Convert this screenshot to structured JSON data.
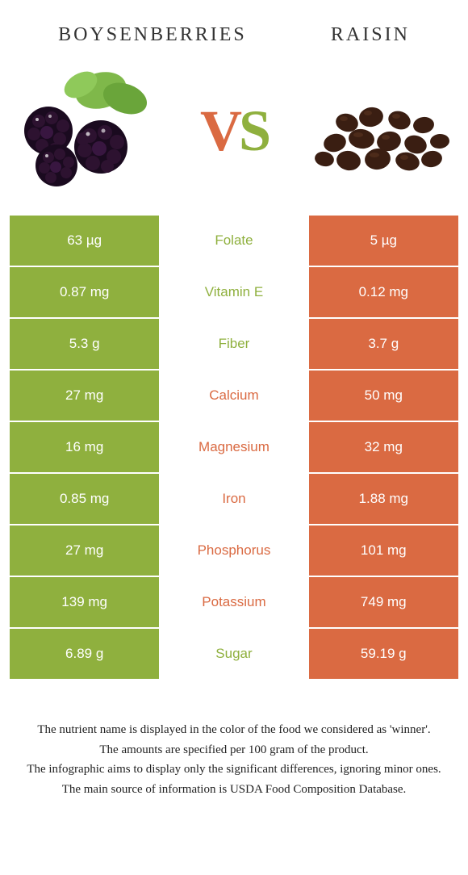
{
  "header": {
    "left_title": "Boysenberries",
    "right_title": "Raisin",
    "vs_v": "V",
    "vs_s": "S"
  },
  "colors": {
    "left_bg": "#8fb03e",
    "right_bg": "#da6a42",
    "left_text": "#8fb03e",
    "right_text": "#da6a42",
    "cell_text": "#ffffff"
  },
  "rows": [
    {
      "left": "63 µg",
      "label": "Folate",
      "right": "5 µg",
      "winner": "left"
    },
    {
      "left": "0.87 mg",
      "label": "Vitamin E",
      "right": "0.12 mg",
      "winner": "left"
    },
    {
      "left": "5.3 g",
      "label": "Fiber",
      "right": "3.7 g",
      "winner": "left"
    },
    {
      "left": "27 mg",
      "label": "Calcium",
      "right": "50 mg",
      "winner": "right"
    },
    {
      "left": "16 mg",
      "label": "Magnesium",
      "right": "32 mg",
      "winner": "right"
    },
    {
      "left": "0.85 mg",
      "label": "Iron",
      "right": "1.88 mg",
      "winner": "right"
    },
    {
      "left": "27 mg",
      "label": "Phosphorus",
      "right": "101 mg",
      "winner": "right"
    },
    {
      "left": "139 mg",
      "label": "Potassium",
      "right": "749 mg",
      "winner": "right"
    },
    {
      "left": "6.89 g",
      "label": "Sugar",
      "right": "59.19 g",
      "winner": "left"
    }
  ],
  "footer": {
    "line1": "The nutrient name is displayed in the color of the food we considered as 'winner'.",
    "line2": "The amounts are specified per 100 gram of the product.",
    "line3": "The infographic aims to display only the significant differences, ignoring minor ones.",
    "line4": "The main source of information is USDA Food Composition Database."
  }
}
